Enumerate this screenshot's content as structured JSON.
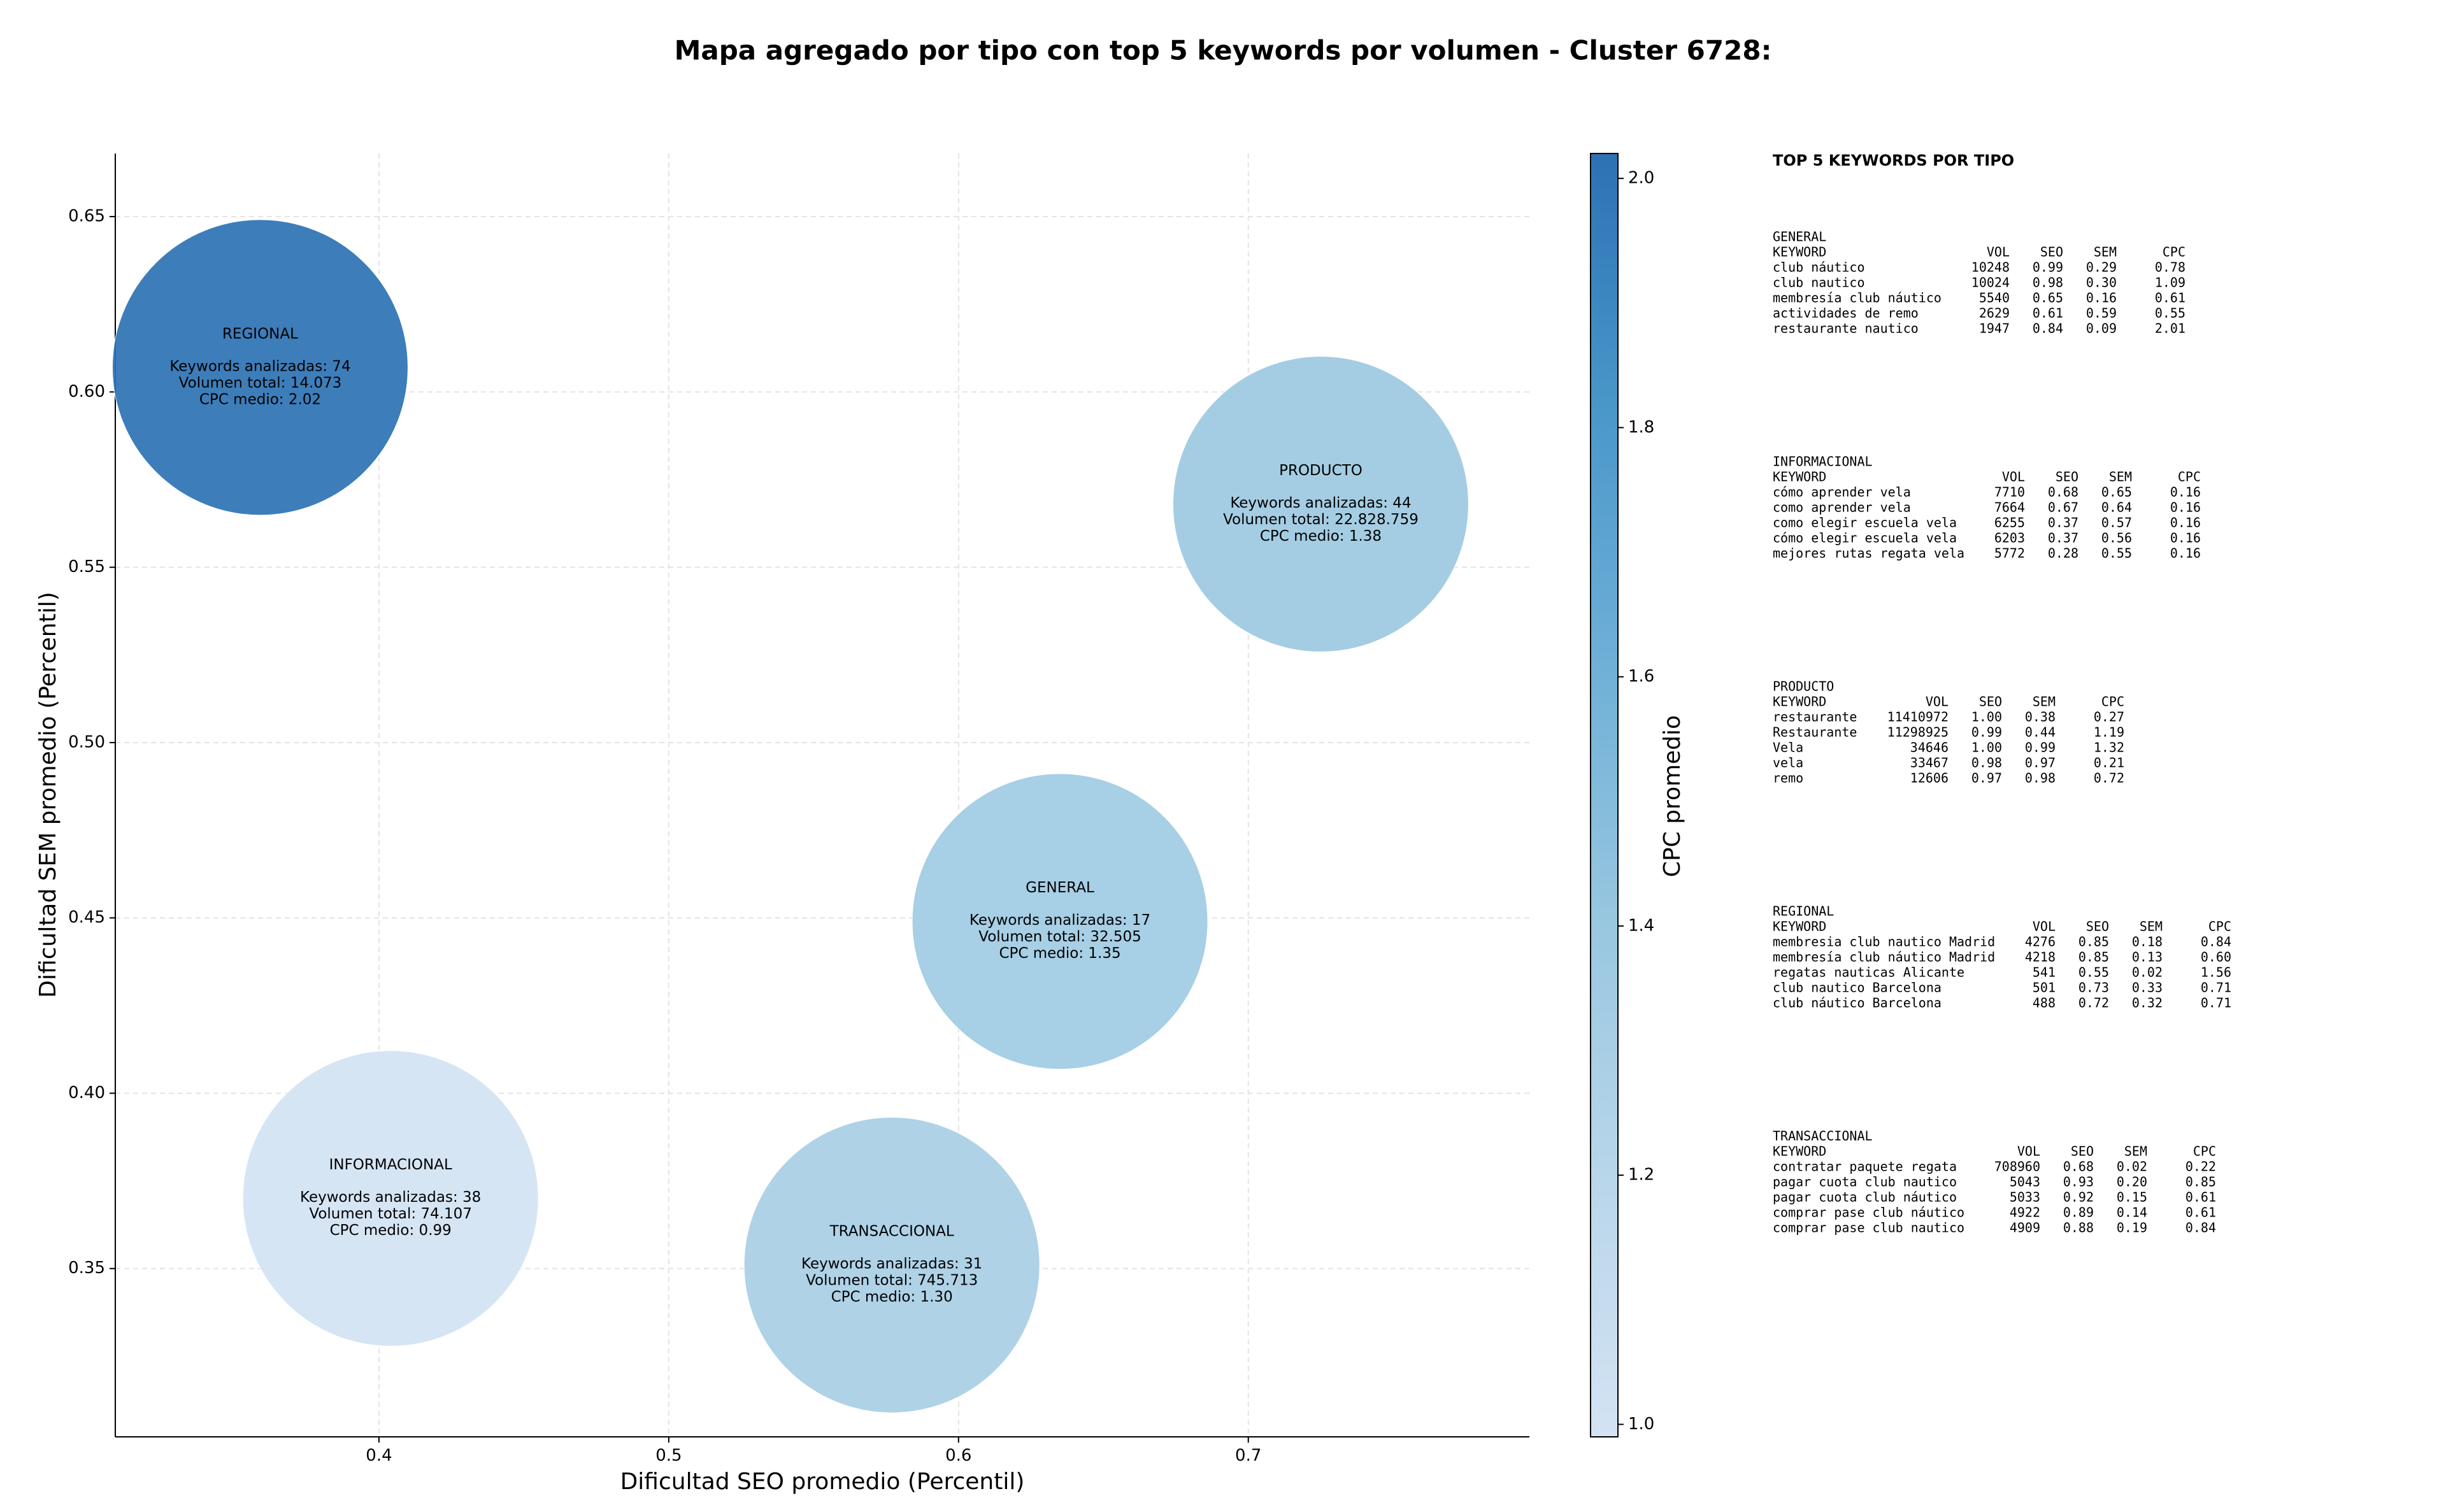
{
  "chart_data": {
    "type": "bubble",
    "title": "Mapa agregado por tipo con top 5 keywords por volumen - Cluster 6728:",
    "x_label": "Dificultad SEO promedio (Percentil)",
    "y_label": "Dificultad SEM promedio (Percentil)",
    "colorbar_label": "CPC promedio",
    "categories": [
      "REGIONAL",
      "PRODUCTO",
      "GENERAL",
      "INFORMACIONAL",
      "TRANSACCIONAL"
    ],
    "x": [
      0.359,
      0.725,
      0.635,
      0.404,
      0.577
    ],
    "values": [
      0.607,
      0.568,
      0.449,
      0.37,
      0.351
    ],
    "cpc": [
      2.02,
      1.38,
      1.35,
      0.99,
      1.3
    ],
    "annotations": [
      [
        "Keywords analizadas: 74",
        "Volumen total: 14.073",
        "CPC medio: 2.02"
      ],
      [
        "Keywords analizadas: 44",
        "Volumen total: 22.828.759",
        "CPC medio: 1.38"
      ],
      [
        "Keywords analizadas: 17",
        "Volumen total: 32.505",
        "CPC medio: 1.35"
      ],
      [
        "Keywords analizadas: 38",
        "Volumen total: 74.107",
        "CPC medio: 0.99"
      ],
      [
        "Keywords analizadas: 31",
        "Volumen total: 745.713",
        "CPC medio: 1.30"
      ]
    ],
    "xlim": [
      0.309,
      0.797
    ],
    "ylim": [
      0.302,
      0.668
    ],
    "xticks": [
      0.4,
      0.5,
      0.6,
      0.7
    ],
    "yticks": [
      0.35,
      {
        "value": 0.4,
        "label": "0.40"
      },
      0.45,
      {
        "value": 0.5,
        "label": "0.50"
      },
      0.55,
      {
        "value": 0.6,
        "label": "0.60"
      },
      0.65
    ],
    "clim": [
      0.99,
      2.02
    ],
    "cticks": [
      {
        "value": 1,
        "label": "1.0"
      },
      1.2,
      1.4,
      1.6,
      1.8,
      {
        "value": 2,
        "label": "2.0"
      }
    ],
    "colorscale": [
      "#d3e3f3",
      "#b9d6ea",
      "#98c7e0",
      "#6fb0d7",
      "#4a97c9",
      "#2c72b4"
    ],
    "grid": true,
    "side_panel": {
      "heading": "TOP 5 KEYWORDS POR TIPO",
      "tables": [
        {
          "title": "GENERAL",
          "header": [
            "KEYWORD",
            "VOL",
            "SEO",
            "SEM",
            "CPC"
          ],
          "rows": [
            [
              "club náutico",
              "10248",
              "0.99",
              "0.29",
              "0.78"
            ],
            [
              "club nautico",
              "10024",
              "0.98",
              "0.30",
              "1.09"
            ],
            [
              "membresía club náutico",
              "5540",
              "0.65",
              "0.16",
              "0.61"
            ],
            [
              "actividades de remo",
              "2629",
              "0.61",
              "0.59",
              "0.55"
            ],
            [
              "restaurante nautico",
              "1947",
              "0.84",
              "0.09",
              "2.01"
            ]
          ]
        },
        {
          "title": "INFORMACIONAL",
          "header": [
            "KEYWORD",
            "VOL",
            "SEO",
            "SEM",
            "CPC"
          ],
          "rows": [
            [
              "cómo aprender vela",
              "7710",
              "0.68",
              "0.65",
              "0.16"
            ],
            [
              "como aprender vela",
              "7664",
              "0.67",
              "0.64",
              "0.16"
            ],
            [
              "como elegir escuela vela",
              "6255",
              "0.37",
              "0.57",
              "0.16"
            ],
            [
              "cómo elegir escuela vela",
              "6203",
              "0.37",
              "0.56",
              "0.16"
            ],
            [
              "mejores rutas regata vela",
              "5772",
              "0.28",
              "0.55",
              "0.16"
            ]
          ]
        },
        {
          "title": "PRODUCTO",
          "header": [
            "KEYWORD",
            "VOL",
            "SEO",
            "SEM",
            "CPC"
          ],
          "rows": [
            [
              "restaurante",
              "11410972",
              "1.00",
              "0.38",
              "0.27"
            ],
            [
              "Restaurante",
              "11298925",
              "0.99",
              "0.44",
              "1.19"
            ],
            [
              "Vela",
              "34646",
              "1.00",
              "0.99",
              "1.32"
            ],
            [
              "vela",
              "33467",
              "0.98",
              "0.97",
              "0.21"
            ],
            [
              "remo",
              "12606",
              "0.97",
              "0.98",
              "0.72"
            ]
          ]
        },
        {
          "title": "REGIONAL",
          "header": [
            "KEYWORD",
            "VOL",
            "SEO",
            "SEM",
            "CPC"
          ],
          "rows": [
            [
              "membresia club nautico Madrid",
              "4276",
              "0.85",
              "0.18",
              "0.84"
            ],
            [
              "membresía club náutico Madrid",
              "4218",
              "0.85",
              "0.13",
              "0.60"
            ],
            [
              "regatas nauticas Alicante",
              "541",
              "0.55",
              "0.02",
              "1.56"
            ],
            [
              "club nautico Barcelona",
              "501",
              "0.73",
              "0.33",
              "0.71"
            ],
            [
              "club náutico Barcelona",
              "488",
              "0.72",
              "0.32",
              "0.71"
            ]
          ]
        },
        {
          "title": "TRANSACCIONAL",
          "header": [
            "KEYWORD",
            "VOL",
            "SEO",
            "SEM",
            "CPC"
          ],
          "rows": [
            [
              "contratar paquete regata",
              "708960",
              "0.68",
              "0.02",
              "0.22"
            ],
            [
              "pagar cuota club nautico",
              "5043",
              "0.93",
              "0.20",
              "0.85"
            ],
            [
              "pagar cuota club náutico",
              "5033",
              "0.92",
              "0.15",
              "0.61"
            ],
            [
              "comprar pase club náutico",
              "4922",
              "0.89",
              "0.14",
              "0.61"
            ],
            [
              "comprar pase club nautico",
              "4909",
              "0.88",
              "0.19",
              "0.84"
            ]
          ]
        }
      ]
    }
  }
}
